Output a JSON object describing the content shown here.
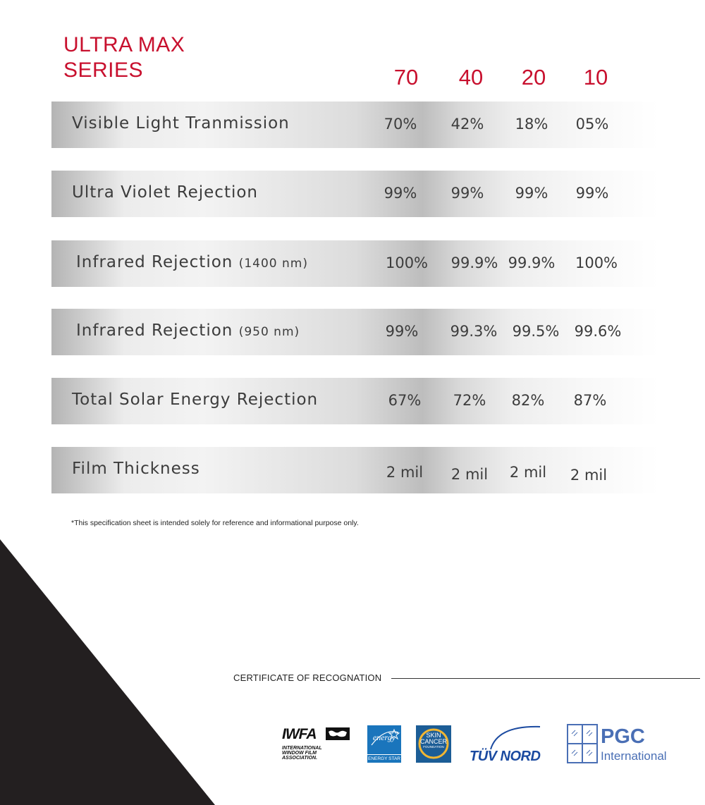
{
  "header": {
    "title_line1": "ULTRA MAX",
    "title_line2": "SERIES",
    "grades": [
      "70",
      "40",
      "20",
      "10"
    ]
  },
  "rows": [
    {
      "label": "Visible Light Tranmission",
      "unit": "",
      "values": [
        "70%",
        "42%",
        "18%",
        "05%"
      ]
    },
    {
      "label": "Ultra Violet Rejection",
      "unit": "",
      "values": [
        "99%",
        "99%",
        "99%",
        "99%"
      ]
    },
    {
      "label": "Infrared Rejection",
      "unit": "(1400 nm)",
      "values": [
        "100%",
        "99.9%",
        "99.9%",
        "100%"
      ]
    },
    {
      "label": "Infrared Rejection",
      "unit": "(950 nm)",
      "values": [
        "99%",
        "99.3%",
        "99.5%",
        "99.6%"
      ]
    },
    {
      "label": "Total Solar Energy Rejection",
      "unit": "",
      "values": [
        "67%",
        "72%",
        "82%",
        "87%"
      ]
    },
    {
      "label": "Film Thickness",
      "unit": "",
      "values": [
        "2 mil",
        "2 mil",
        "2 mil",
        "2 mil"
      ]
    }
  ],
  "disclaimer": "*This specification sheet is intended solely for reference and informational purpose only.",
  "certificates": {
    "title": "CERTIFICATE OF RECOGNATION",
    "iwfa": {
      "mark": "IWFA",
      "text": [
        "INTERNATIONAL",
        "WINDOW FILM",
        "ASSOCIATION."
      ]
    },
    "energy_star": {
      "word": "energy",
      "label": "ENERGY STAR"
    },
    "skin_cancer": {
      "line1": "SKIN",
      "line2": "CANCER",
      "line3": "FOUNDATION"
    },
    "tuv": {
      "text": "TÜV NORD"
    },
    "pgc": {
      "name": "PGC",
      "sub": "International"
    }
  },
  "colors": {
    "accent": "#c8102e",
    "tuv_blue": "#1b4aa0",
    "pgc_blue": "#4a6fb5",
    "energy_star_blue": "#1a75bc"
  }
}
